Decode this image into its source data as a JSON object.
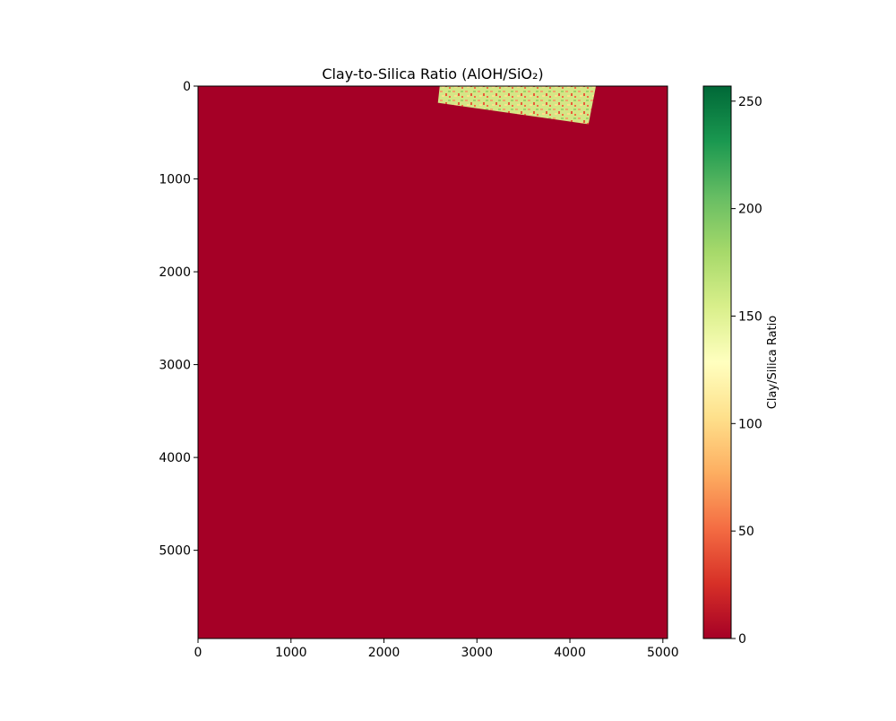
{
  "chart_data": {
    "type": "heatmap",
    "title": "Clay-to-Silica Ratio (AlOH/SiO₂)",
    "xlabel": "",
    "ylabel": "",
    "xlim": [
      0,
      5050
    ],
    "ylim": [
      5950,
      0
    ],
    "x_ticks": [
      0,
      1000,
      2000,
      3000,
      4000,
      5000
    ],
    "y_ticks": [
      0,
      1000,
      2000,
      3000,
      4000,
      5000
    ],
    "colormap": "RdYlGn",
    "background_value": 0,
    "valid_region": {
      "description": "rotated scene footprint near top",
      "corners": [
        [
          2600,
          0
        ],
        [
          4280,
          0
        ],
        [
          4200,
          410
        ],
        [
          2580,
          180
        ]
      ]
    },
    "colorbar": {
      "label": "Clay/Silica Ratio",
      "range": [
        0,
        257
      ],
      "ticks": [
        0,
        50,
        100,
        150,
        200,
        250
      ]
    }
  },
  "colors": {
    "background_fill": "#a50026",
    "frame": "#000000"
  }
}
